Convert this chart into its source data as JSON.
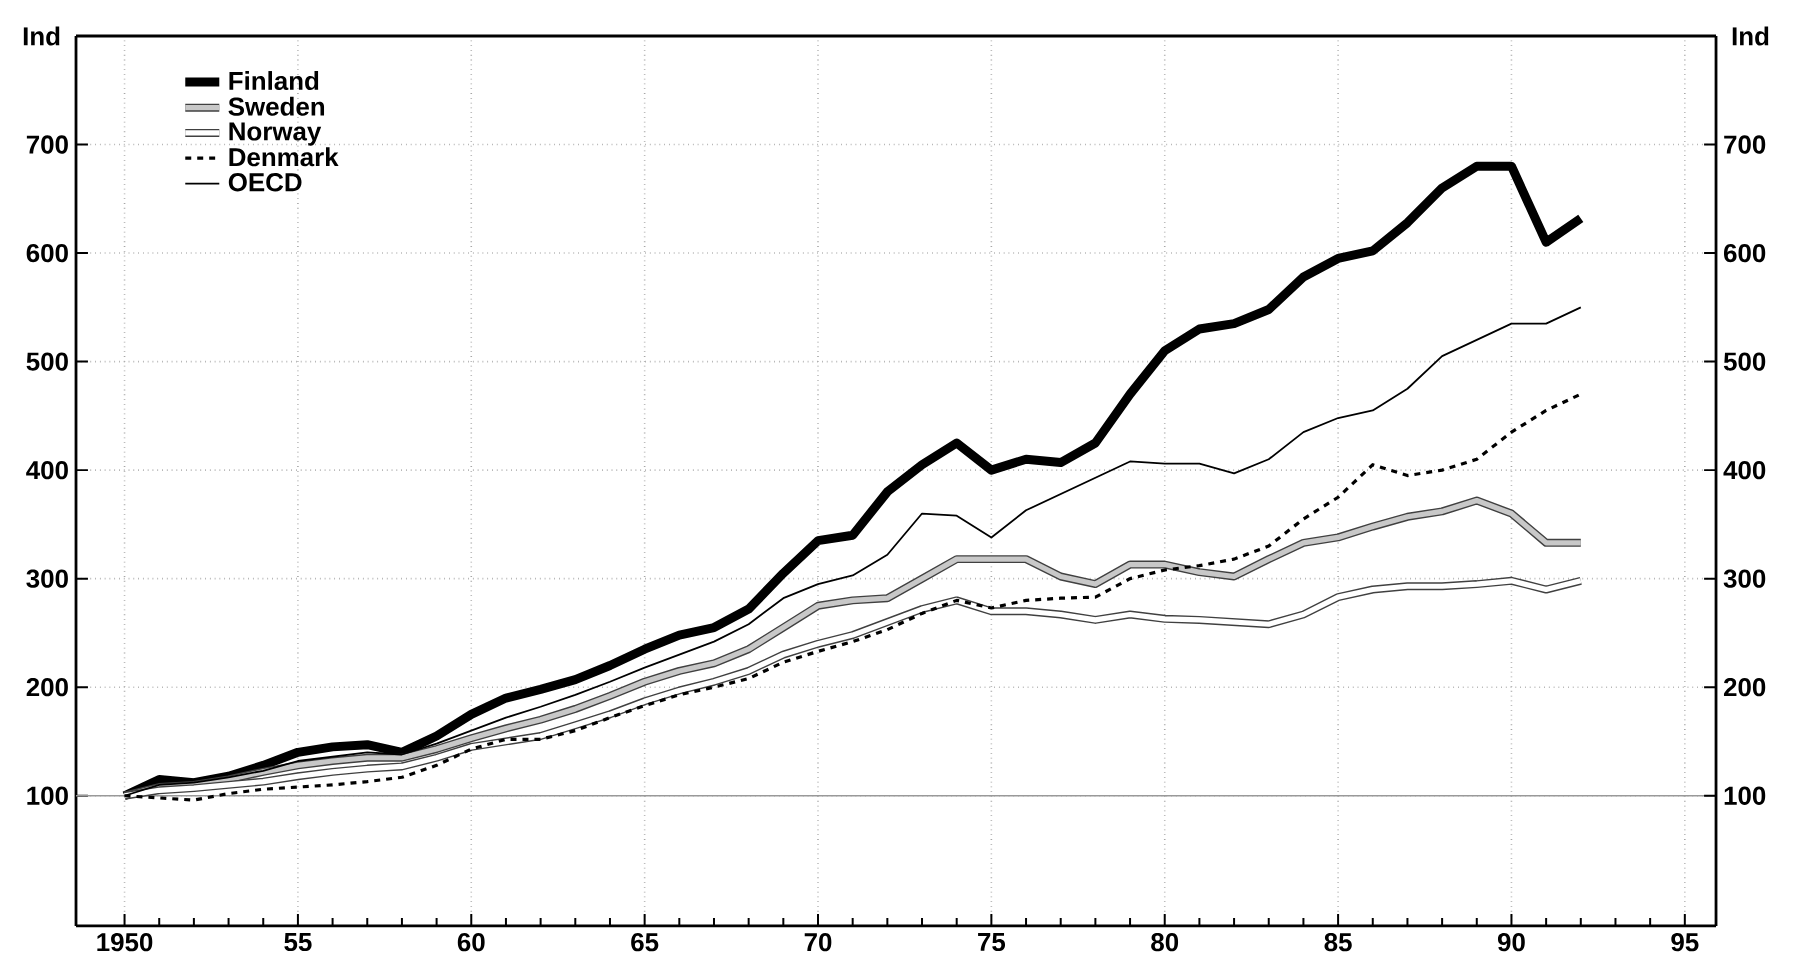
{
  "chart_data": {
    "type": "line",
    "ylabel": "Ind",
    "y2label": "Ind",
    "x": [
      1950,
      1951,
      1952,
      1953,
      1954,
      1955,
      1956,
      1957,
      1958,
      1959,
      1960,
      1961,
      1962,
      1963,
      1964,
      1965,
      1966,
      1967,
      1968,
      1969,
      1970,
      1971,
      1972,
      1973,
      1974,
      1975,
      1976,
      1977,
      1978,
      1979,
      1980,
      1981,
      1982,
      1983,
      1984,
      1985,
      1986,
      1987,
      1988,
      1989,
      1990,
      1991,
      1992
    ],
    "series": [
      {
        "name": "Finland",
        "color": "#000000",
        "values": [
          100,
          115,
          112,
          118,
          128,
          140,
          145,
          147,
          140,
          155,
          175,
          190,
          198,
          207,
          220,
          235,
          248,
          255,
          272,
          305,
          335,
          340,
          380,
          405,
          425,
          400,
          410,
          407,
          425,
          470,
          510,
          530,
          535,
          548,
          578,
          595,
          602,
          628,
          660,
          680,
          680,
          610,
          632
        ]
      },
      {
        "name": "Sweden",
        "color": "#c8c8c8",
        "values": [
          100,
          108,
          110,
          115,
          122,
          128,
          132,
          135,
          135,
          143,
          153,
          162,
          170,
          180,
          192,
          205,
          215,
          222,
          235,
          255,
          275,
          280,
          282,
          300,
          318,
          318,
          318,
          302,
          295,
          313,
          313,
          306,
          302,
          318,
          333,
          338,
          348,
          357,
          362,
          372,
          360,
          333,
          333
        ]
      },
      {
        "name": "Norway",
        "color": "#ffffff",
        "values": [
          100,
          105,
          107,
          110,
          113,
          118,
          122,
          125,
          127,
          135,
          145,
          150,
          155,
          165,
          175,
          187,
          197,
          205,
          215,
          230,
          240,
          248,
          260,
          272,
          280,
          270,
          270,
          267,
          262,
          267,
          263,
          262,
          260,
          258,
          267,
          283,
          290,
          293,
          293,
          295,
          298,
          290,
          298
        ]
      },
      {
        "name": "Denmark",
        "color": "#000000",
        "line_style": "dashed",
        "values": [
          100,
          98,
          96,
          102,
          106,
          108,
          110,
          113,
          117,
          128,
          143,
          152,
          152,
          160,
          172,
          183,
          193,
          200,
          208,
          223,
          233,
          242,
          253,
          268,
          280,
          273,
          280,
          282,
          283,
          300,
          308,
          312,
          318,
          330,
          355,
          375,
          405,
          395,
          400,
          410,
          435,
          455,
          470
        ]
      },
      {
        "name": "OECD",
        "color": "#000000",
        "values": [
          100,
          110,
          112,
          117,
          123,
          132,
          136,
          140,
          138,
          148,
          160,
          172,
          182,
          193,
          205,
          218,
          230,
          242,
          258,
          282,
          295,
          303,
          322,
          360,
          358,
          338,
          363,
          378,
          393,
          408,
          406,
          406,
          397,
          410,
          435,
          448,
          455,
          475,
          505,
          520,
          535,
          535,
          550
        ]
      }
    ],
    "xlim": [
      1948.6,
      1995.9
    ],
    "xticks": [
      1950,
      {
        "value": 1955,
        "label": "55"
      },
      {
        "value": 1960,
        "label": "60"
      },
      {
        "value": 1965,
        "label": "65"
      },
      {
        "value": 1970,
        "label": "70"
      },
      {
        "value": 1975,
        "label": "75"
      },
      {
        "value": 1980,
        "label": "80"
      },
      {
        "value": 1985,
        "label": "85"
      },
      {
        "value": 1990,
        "label": "90"
      },
      {
        "value": 1995,
        "label": "95"
      }
    ],
    "ylim": [
      -20,
      800
    ],
    "yticks": [
      100,
      200,
      300,
      400,
      500,
      600,
      700
    ],
    "y2lim": [
      -20,
      800
    ],
    "y2ticks": [
      100,
      200,
      300,
      400,
      500,
      600,
      700
    ],
    "ref_lines": [
      {
        "axis": "y",
        "value": 100,
        "color": "#999999"
      }
    ],
    "grid": true,
    "legend": "top left",
    "marker": "none"
  }
}
